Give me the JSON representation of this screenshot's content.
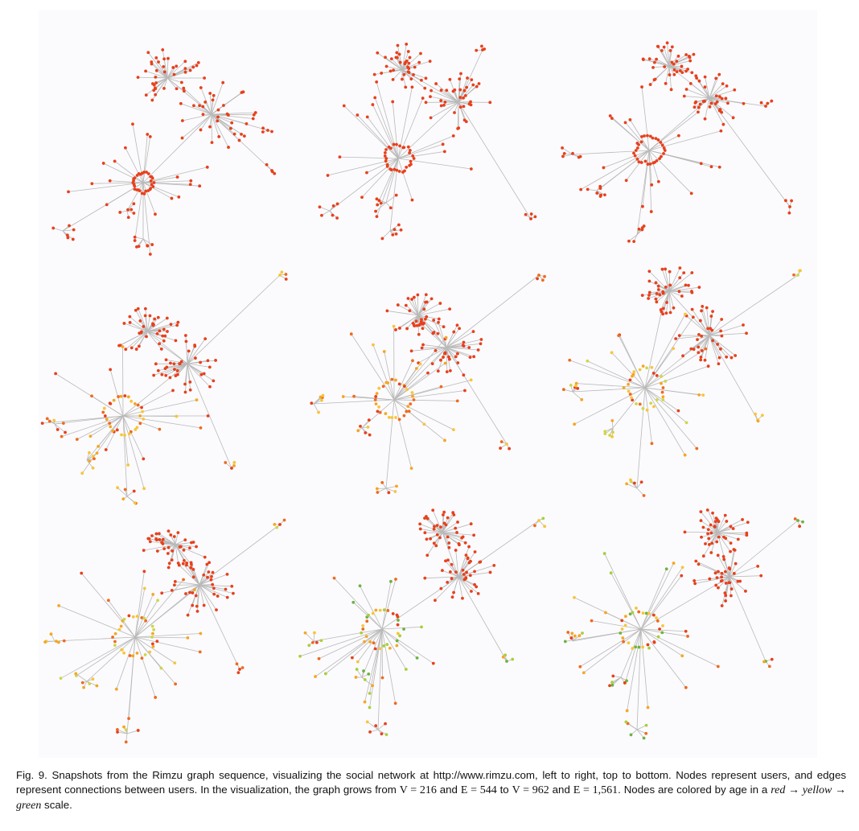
{
  "figure": {
    "panels": [
      {
        "id": "snapshot-1",
        "palette": [
          "#e8401c"
        ]
      },
      {
        "id": "snapshot-2",
        "palette": [
          "#e8401c"
        ]
      },
      {
        "id": "snapshot-3",
        "palette": [
          "#e8401c"
        ]
      },
      {
        "id": "snapshot-4",
        "palette": [
          "#e8401c",
          "#ef6a1e",
          "#f6a623",
          "#f7c53b"
        ]
      },
      {
        "id": "snapshot-5",
        "palette": [
          "#e8401c",
          "#ef6a1e",
          "#f6a623",
          "#f7c53b"
        ]
      },
      {
        "id": "snapshot-6",
        "palette": [
          "#e8401c",
          "#ef6a1e",
          "#f6a623",
          "#f7c53b",
          "#cfd64a"
        ]
      },
      {
        "id": "snapshot-7",
        "palette": [
          "#e8401c",
          "#ef6a1e",
          "#f6a623",
          "#f7c53b",
          "#cfd64a"
        ]
      },
      {
        "id": "snapshot-8",
        "palette": [
          "#e8401c",
          "#ef6a1e",
          "#f6a623",
          "#f7c53b",
          "#a9cf3c",
          "#6db33f"
        ]
      },
      {
        "id": "snapshot-9",
        "palette": [
          "#e8401c",
          "#ef6a1e",
          "#f6a623",
          "#f7c53b",
          "#a9cf3c",
          "#6db33f"
        ]
      }
    ],
    "edge_color": "#b9b9b9"
  },
  "caption": {
    "p1": "Fig. 9. Snapshots from the Rimzu graph sequence, visualizing the social network at http://www.rimzu.com, left to right, top to bottom. Nodes represent users, and edges represent connections between users. In the visualization, the graph grows from ",
    "v1": "V = 216",
    "and1": " and ",
    "e1": "E = 544",
    "to": " to ",
    "v2": "V = 962",
    "and2": " and ",
    "e2": "E = 1,561",
    "p2": ". Nodes are colored by age in a ",
    "c1": "red",
    "arrow1": " → ",
    "c2": "yellow",
    "arrow2": " → ",
    "c3": "green",
    "p3": " scale."
  }
}
